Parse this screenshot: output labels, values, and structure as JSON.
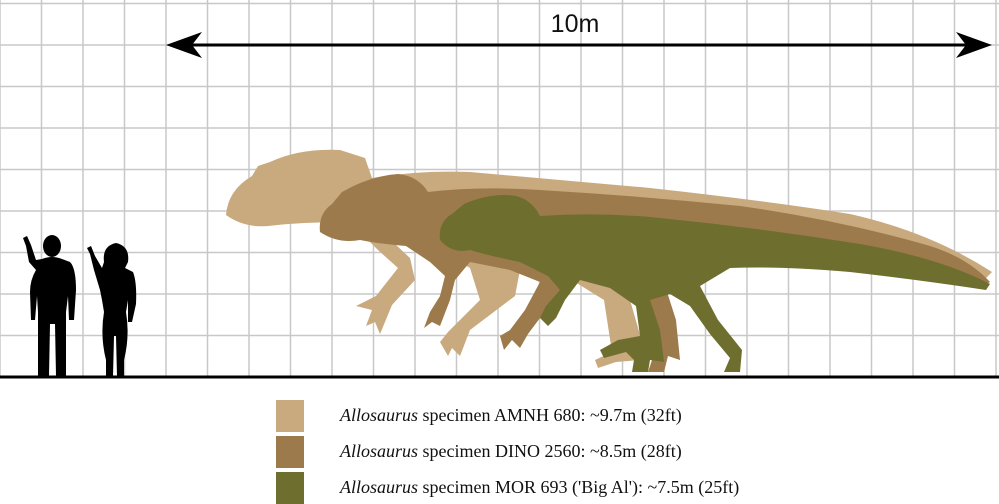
{
  "scale": {
    "label": "10m"
  },
  "colors": {
    "grid": "#c8c8c8",
    "ground": "#000000",
    "human": "#000000",
    "amnh": "#c8aa7e",
    "dino": "#9c7a4b",
    "mor": "#6e6e2f"
  },
  "legend": [
    {
      "genus": "Allosaurus",
      "text": " specimen AMNH 680:  ~9.7m (32ft)",
      "color": "#c8aa7e"
    },
    {
      "genus": "Allosaurus",
      "text": " specimen DINO 2560:  ~8.5m (28ft)",
      "color": "#9c7a4b"
    },
    {
      "genus": "Allosaurus",
      "text": " specimen MOR 693 ('Big Al'):  ~7.5m (25ft)",
      "color": "#6e6e2f"
    }
  ],
  "icons": {
    "human_male": "human-male-silhouette",
    "human_female": "human-female-silhouette",
    "dinosaur": "allosaurus-silhouette",
    "arrow": "double-headed-arrow"
  }
}
